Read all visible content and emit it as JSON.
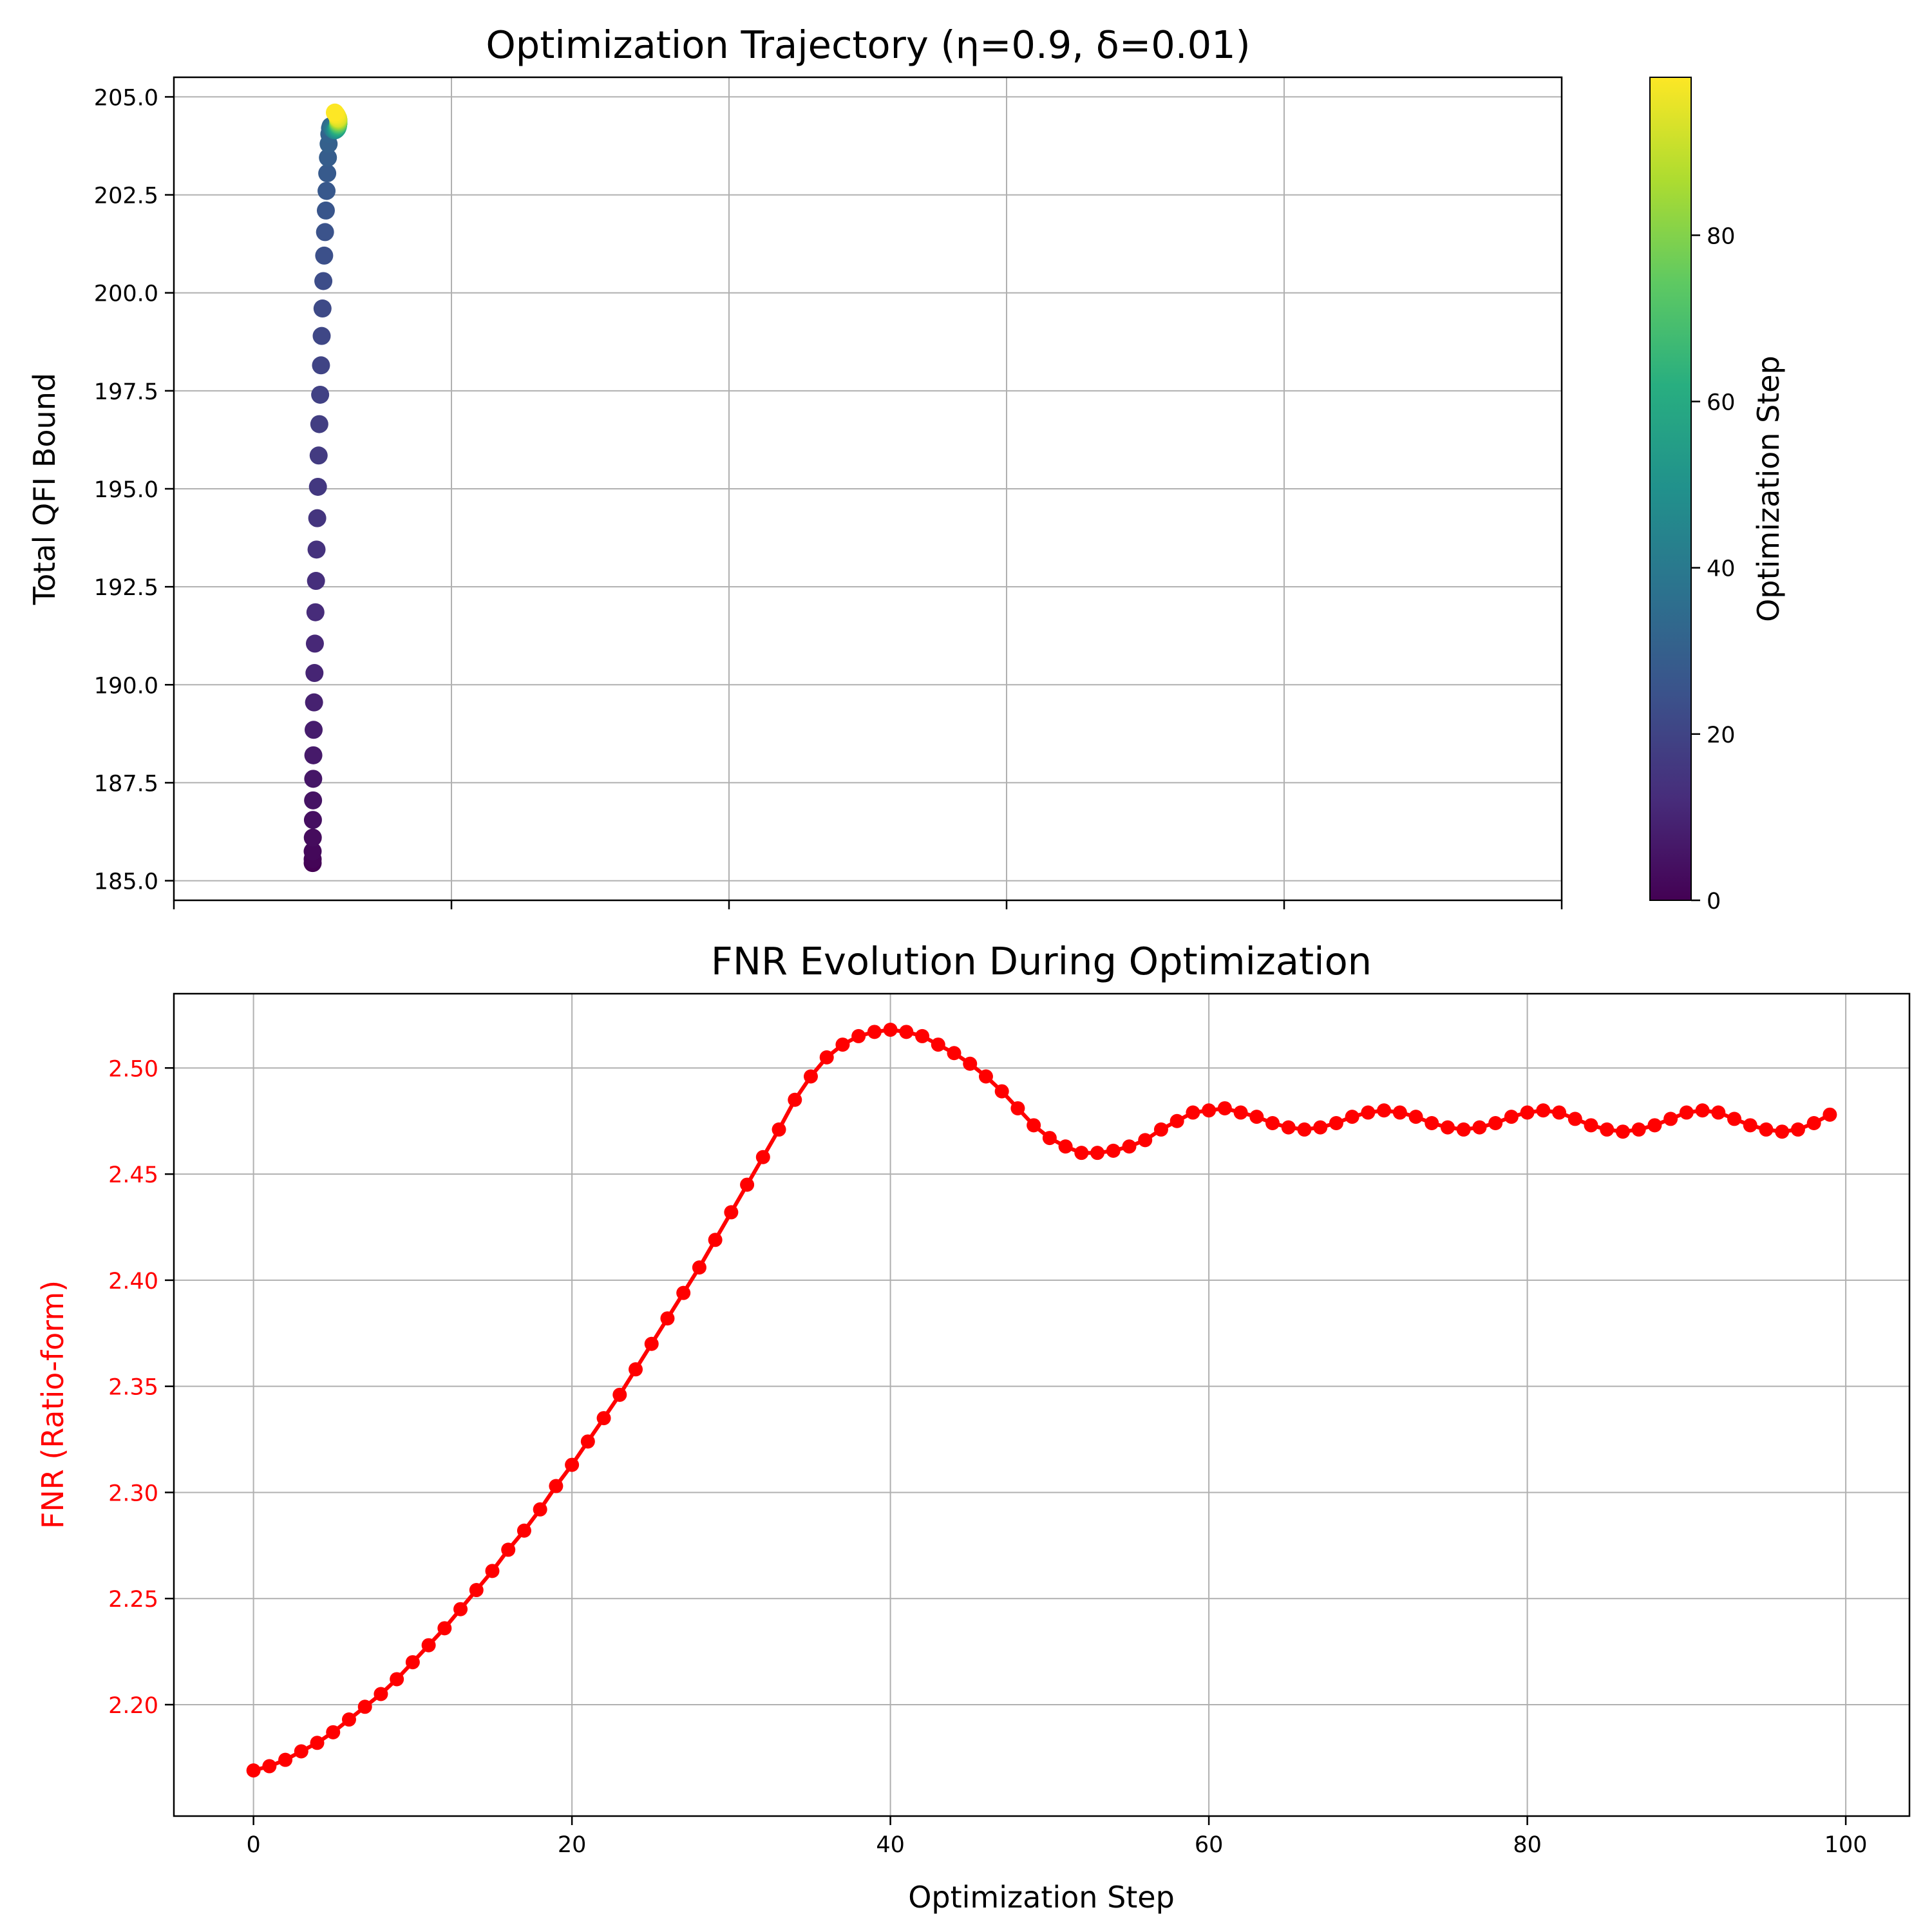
{
  "chart_data": [
    {
      "type": "scatter",
      "title": "Optimization Trajectory (η=0.9, δ=0.01)",
      "xlabel": "",
      "ylabel": "Total QFI Bound",
      "xlim": [
        0,
        100
      ],
      "ylim": [
        184.5,
        205.5
      ],
      "yticks": [
        185.0,
        187.5,
        190.0,
        192.5,
        195.0,
        197.5,
        200.0,
        202.5,
        205.0
      ],
      "ytick_labels": [
        "185.0",
        "187.5",
        "190.0",
        "192.5",
        "195.0",
        "197.5",
        "200.0",
        "202.5",
        "205.0"
      ],
      "xticks": [
        0,
        20,
        40,
        60,
        80,
        100
      ],
      "xtick_labels_shown": false,
      "grid": true,
      "colormap": "viridis",
      "colorbar": {
        "label": "Optimization Step",
        "range": [
          0,
          99
        ],
        "ticks": [
          0,
          20,
          40,
          60,
          80
        ],
        "tick_labels": [
          "0",
          "20",
          "40",
          "60",
          "80"
        ]
      },
      "points": {
        "x": [
          10.0,
          10.0,
          10.0,
          10.01,
          10.02,
          10.03,
          10.04,
          10.05,
          10.07,
          10.1,
          10.13,
          10.16,
          10.2,
          10.24,
          10.28,
          10.33,
          10.38,
          10.43,
          10.48,
          10.54,
          10.6,
          10.65,
          10.71,
          10.77,
          10.83,
          10.89,
          10.95,
          11.0,
          11.05,
          11.1,
          11.15,
          11.2,
          11.25,
          11.29,
          11.33,
          11.36,
          11.4,
          11.43,
          11.46,
          11.49,
          11.52,
          11.54,
          11.57,
          11.59,
          11.61,
          11.63,
          11.65,
          11.67,
          11.69,
          11.7,
          11.72,
          11.73,
          11.74,
          11.76,
          11.77,
          11.78,
          11.79,
          11.79,
          11.8,
          11.81,
          11.81,
          11.82,
          11.82,
          11.82,
          11.83,
          11.83,
          11.83,
          11.84,
          11.84,
          11.84,
          11.84,
          11.85,
          11.85,
          11.85,
          11.85,
          11.85,
          11.85,
          11.85,
          11.85,
          11.85,
          11.85,
          11.85,
          11.85,
          11.85,
          11.85,
          11.85,
          11.85,
          11.84,
          11.84,
          11.84,
          11.84,
          11.83,
          11.83,
          11.82,
          11.8,
          11.78,
          11.75,
          11.72,
          11.68,
          11.6
        ],
        "y": [
          185.45,
          185.55,
          185.75,
          186.1,
          186.55,
          187.05,
          187.6,
          188.2,
          188.85,
          189.55,
          190.3,
          191.05,
          191.85,
          192.65,
          193.45,
          194.25,
          195.05,
          195.85,
          196.65,
          197.4,
          198.15,
          198.9,
          199.6,
          200.3,
          200.95,
          201.55,
          202.1,
          202.6,
          203.05,
          203.45,
          203.8,
          204.05,
          204.2,
          204.25,
          204.25,
          204.22,
          204.2,
          204.18,
          204.17,
          204.16,
          204.15,
          204.15,
          204.15,
          204.15,
          204.15,
          204.15,
          204.16,
          204.16,
          204.17,
          204.17,
          204.18,
          204.18,
          204.19,
          204.2,
          204.2,
          204.21,
          204.22,
          204.22,
          204.23,
          204.24,
          204.24,
          204.25,
          204.26,
          204.26,
          204.27,
          204.28,
          204.28,
          204.29,
          204.3,
          204.3,
          204.31,
          204.32,
          204.32,
          204.33,
          204.34,
          204.34,
          204.35,
          204.36,
          204.36,
          204.37,
          204.38,
          204.38,
          204.39,
          204.4,
          204.4,
          204.41,
          204.42,
          204.42,
          204.43,
          204.44,
          204.44,
          204.45,
          204.46,
          204.46,
          204.48,
          204.5,
          204.52,
          204.54,
          204.56,
          204.6
        ]
      }
    },
    {
      "type": "line",
      "title": "FNR Evolution During Optimization",
      "xlabel": "Optimization Step",
      "ylabel": "FNR (Ratio-form)",
      "ylabel_color": "#ff0000",
      "line_color": "#ff0000",
      "marker": "circle",
      "xlim": [
        -5,
        104
      ],
      "ylim": [
        2.1475,
        2.535
      ],
      "xticks": [
        0,
        20,
        40,
        60,
        80,
        100
      ],
      "xtick_labels": [
        "0",
        "20",
        "40",
        "60",
        "80",
        "100"
      ],
      "yticks": [
        2.2,
        2.25,
        2.3,
        2.35,
        2.4,
        2.45,
        2.5
      ],
      "ytick_labels": [
        "2.20",
        "2.25",
        "2.30",
        "2.35",
        "2.40",
        "2.45",
        "2.50"
      ],
      "grid": true,
      "series": [
        {
          "name": "",
          "x": [
            0,
            1,
            2,
            3,
            4,
            5,
            6,
            7,
            8,
            9,
            10,
            11,
            12,
            13,
            14,
            15,
            16,
            17,
            18,
            19,
            20,
            21,
            22,
            23,
            24,
            25,
            26,
            27,
            28,
            29,
            30,
            31,
            32,
            33,
            34,
            35,
            36,
            37,
            38,
            39,
            40,
            41,
            42,
            43,
            44,
            45,
            46,
            47,
            48,
            49,
            50,
            51,
            52,
            53,
            54,
            55,
            56,
            57,
            58,
            59,
            60,
            61,
            62,
            63,
            64,
            65,
            66,
            67,
            68,
            69,
            70,
            71,
            72,
            73,
            74,
            75,
            76,
            77,
            78,
            79,
            80,
            81,
            82,
            83,
            84,
            85,
            86,
            87,
            88,
            89,
            90,
            91,
            92,
            93,
            94,
            95,
            96,
            97,
            98,
            99
          ],
          "values": [
            2.169,
            2.171,
            2.174,
            2.178,
            2.182,
            2.187,
            2.193,
            2.199,
            2.205,
            2.212,
            2.22,
            2.228,
            2.236,
            2.245,
            2.254,
            2.263,
            2.273,
            2.282,
            2.292,
            2.303,
            2.313,
            2.324,
            2.335,
            2.346,
            2.358,
            2.37,
            2.382,
            2.394,
            2.406,
            2.419,
            2.432,
            2.445,
            2.458,
            2.471,
            2.485,
            2.496,
            2.505,
            2.511,
            2.515,
            2.517,
            2.518,
            2.517,
            2.515,
            2.511,
            2.507,
            2.502,
            2.496,
            2.489,
            2.481,
            2.473,
            2.467,
            2.463,
            2.46,
            2.46,
            2.461,
            2.463,
            2.466,
            2.471,
            2.475,
            2.479,
            2.48,
            2.481,
            2.479,
            2.477,
            2.474,
            2.472,
            2.471,
            2.472,
            2.474,
            2.477,
            2.479,
            2.48,
            2.479,
            2.477,
            2.474,
            2.472,
            2.471,
            2.472,
            2.474,
            2.477,
            2.479,
            2.48,
            2.479,
            2.476,
            2.473,
            2.471,
            2.47,
            2.471,
            2.473,
            2.476,
            2.479,
            2.48,
            2.479,
            2.476,
            2.473,
            2.471,
            2.47,
            2.471,
            2.474,
            2.478
          ]
        }
      ]
    }
  ]
}
